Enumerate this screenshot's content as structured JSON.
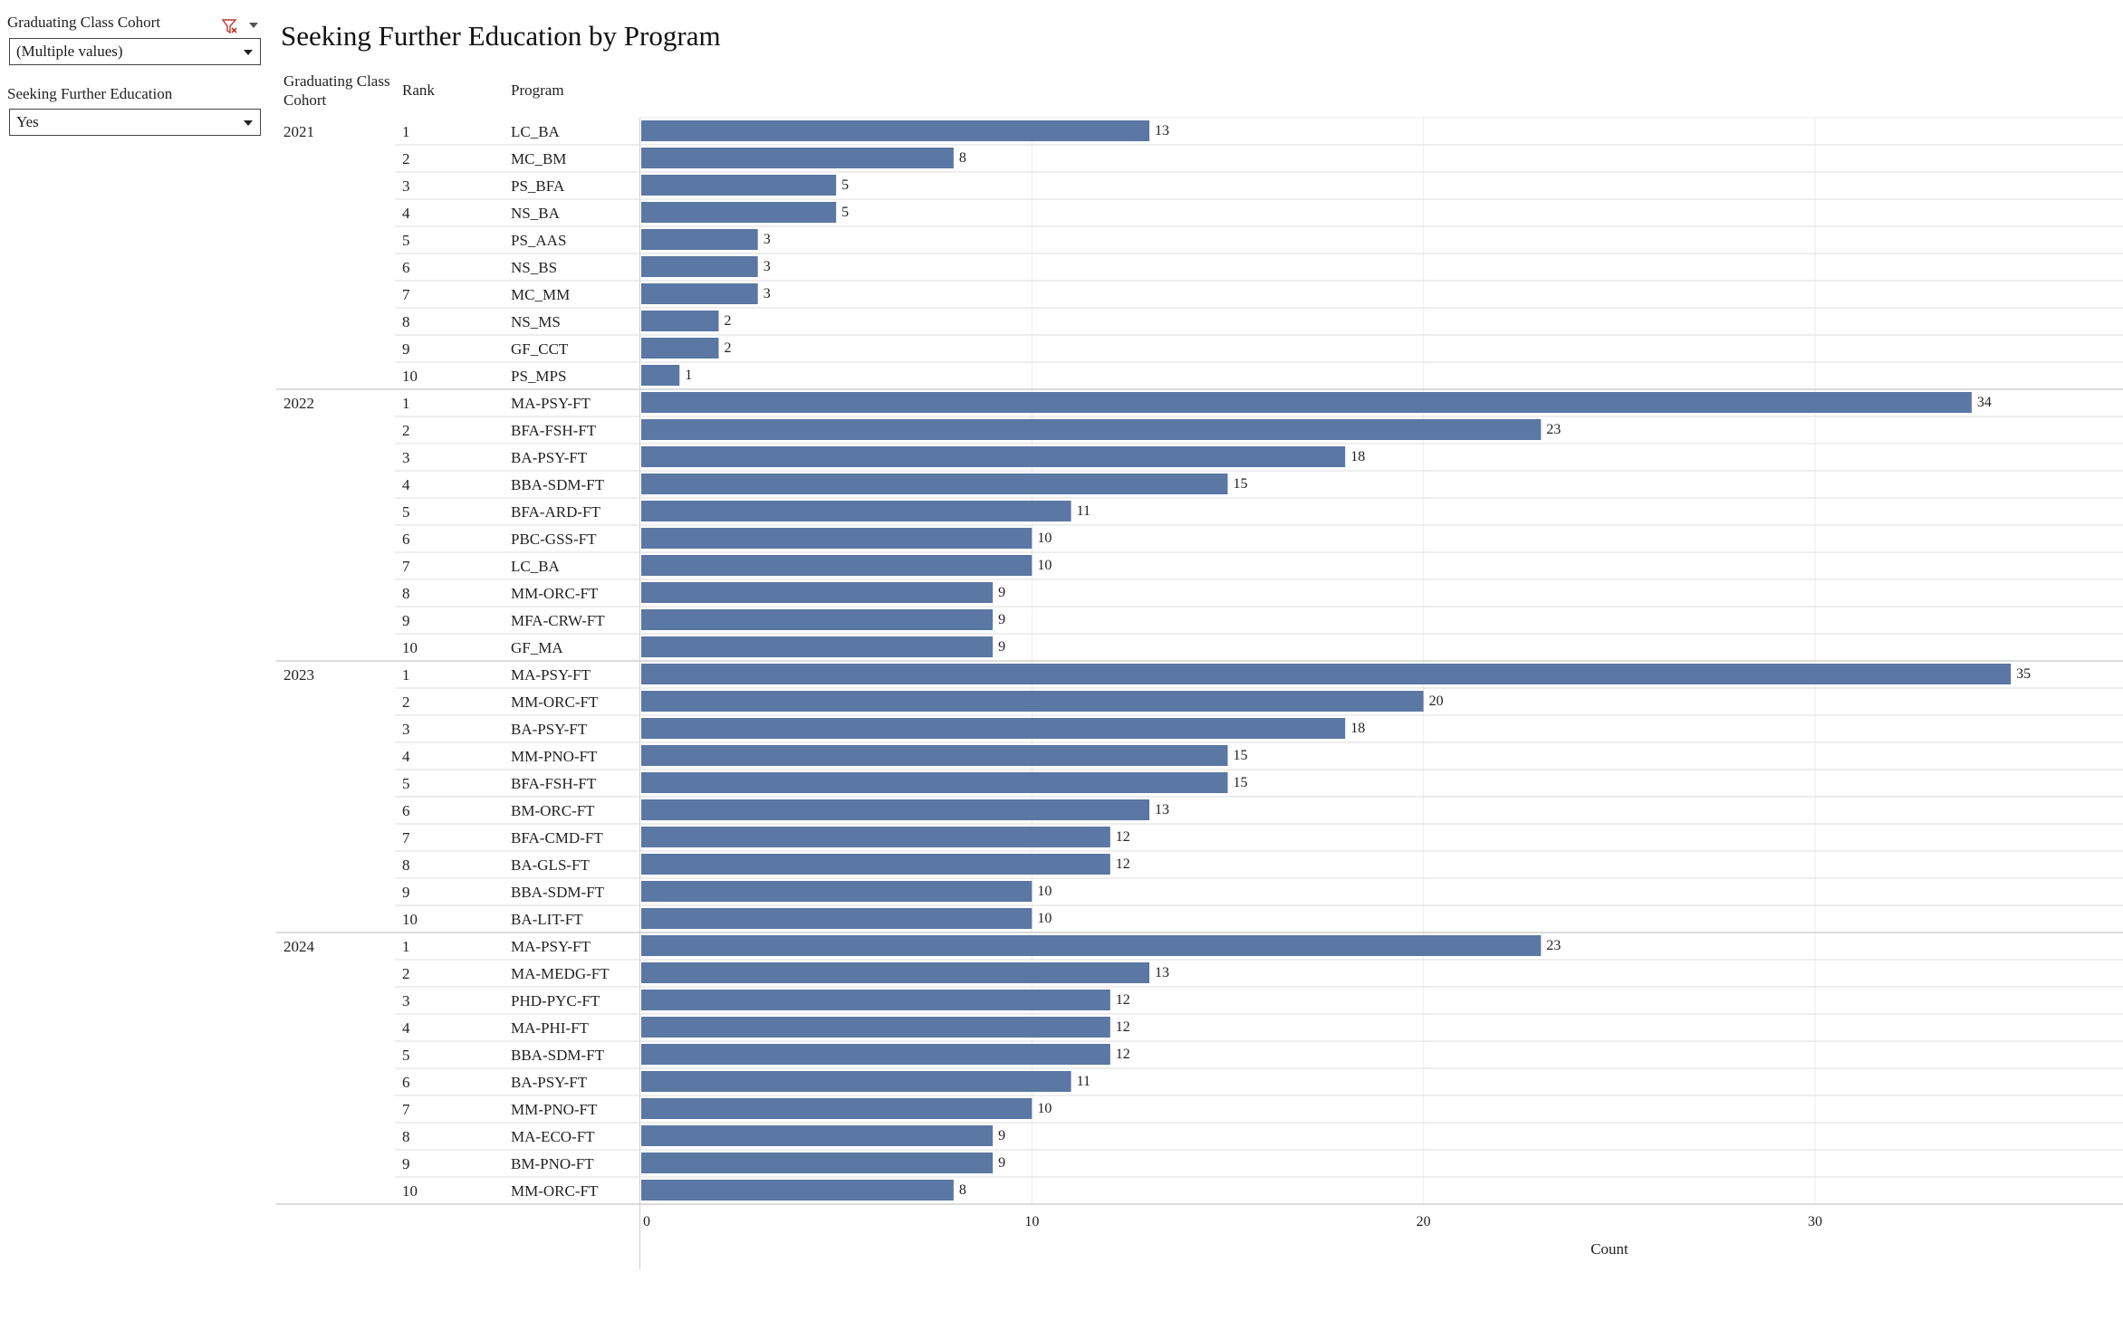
{
  "filters": {
    "cohort": {
      "label": "Graduating Class Cohort",
      "value": "(Multiple values)"
    },
    "further_education": {
      "label": "Seeking Further Education",
      "value": "Yes"
    }
  },
  "chart_data": {
    "type": "bar",
    "title": "Seeking Further Education by Program",
    "row_headers": [
      "Graduating Class Cohort",
      "Rank",
      "Program"
    ],
    "xlabel": "Count",
    "xlim": [
      0,
      38
    ],
    "x_ticks": [
      0,
      10,
      20,
      30
    ],
    "bar_color": "#5b77a3",
    "grid": true,
    "groups": [
      {
        "cohort": "2021",
        "rows": [
          {
            "rank": 1,
            "program": "LC_BA",
            "value": 13
          },
          {
            "rank": 2,
            "program": "MC_BM",
            "value": 8
          },
          {
            "rank": 3,
            "program": "PS_BFA",
            "value": 5
          },
          {
            "rank": 4,
            "program": "NS_BA",
            "value": 5
          },
          {
            "rank": 5,
            "program": "PS_AAS",
            "value": 3
          },
          {
            "rank": 6,
            "program": "NS_BS",
            "value": 3
          },
          {
            "rank": 7,
            "program": "MC_MM",
            "value": 3
          },
          {
            "rank": 8,
            "program": "NS_MS",
            "value": 2
          },
          {
            "rank": 9,
            "program": "GF_CCT",
            "value": 2
          },
          {
            "rank": 10,
            "program": "PS_MPS",
            "value": 1
          }
        ]
      },
      {
        "cohort": "2022",
        "rows": [
          {
            "rank": 1,
            "program": "MA-PSY-FT",
            "value": 34
          },
          {
            "rank": 2,
            "program": "BFA-FSH-FT",
            "value": 23
          },
          {
            "rank": 3,
            "program": "BA-PSY-FT",
            "value": 18
          },
          {
            "rank": 4,
            "program": "BBA-SDM-FT",
            "value": 15
          },
          {
            "rank": 5,
            "program": "BFA-ARD-FT",
            "value": 11
          },
          {
            "rank": 6,
            "program": "PBC-GSS-FT",
            "value": 10
          },
          {
            "rank": 7,
            "program": "LC_BA",
            "value": 10
          },
          {
            "rank": 8,
            "program": "MM-ORC-FT",
            "value": 9
          },
          {
            "rank": 9,
            "program": "MFA-CRW-FT",
            "value": 9
          },
          {
            "rank": 10,
            "program": "GF_MA",
            "value": 9
          }
        ]
      },
      {
        "cohort": "2023",
        "rows": [
          {
            "rank": 1,
            "program": "MA-PSY-FT",
            "value": 35
          },
          {
            "rank": 2,
            "program": "MM-ORC-FT",
            "value": 20
          },
          {
            "rank": 3,
            "program": "BA-PSY-FT",
            "value": 18
          },
          {
            "rank": 4,
            "program": "MM-PNO-FT",
            "value": 15
          },
          {
            "rank": 5,
            "program": "BFA-FSH-FT",
            "value": 15
          },
          {
            "rank": 6,
            "program": "BM-ORC-FT",
            "value": 13
          },
          {
            "rank": 7,
            "program": "BFA-CMD-FT",
            "value": 12
          },
          {
            "rank": 8,
            "program": "BA-GLS-FT",
            "value": 12
          },
          {
            "rank": 9,
            "program": "BBA-SDM-FT",
            "value": 10
          },
          {
            "rank": 10,
            "program": "BA-LIT-FT",
            "value": 10
          }
        ]
      },
      {
        "cohort": "2024",
        "rows": [
          {
            "rank": 1,
            "program": "MA-PSY-FT",
            "value": 23
          },
          {
            "rank": 2,
            "program": "MA-MEDG-FT",
            "value": 13
          },
          {
            "rank": 3,
            "program": "PHD-PYC-FT",
            "value": 12
          },
          {
            "rank": 4,
            "program": "MA-PHI-FT",
            "value": 12
          },
          {
            "rank": 5,
            "program": "BBA-SDM-FT",
            "value": 12
          },
          {
            "rank": 6,
            "program": "BA-PSY-FT",
            "value": 11
          },
          {
            "rank": 7,
            "program": "MM-PNO-FT",
            "value": 10
          },
          {
            "rank": 8,
            "program": "MA-ECO-FT",
            "value": 9
          },
          {
            "rank": 9,
            "program": "BM-PNO-FT",
            "value": 9
          },
          {
            "rank": 10,
            "program": "MM-ORC-FT",
            "value": 8
          }
        ]
      }
    ]
  }
}
